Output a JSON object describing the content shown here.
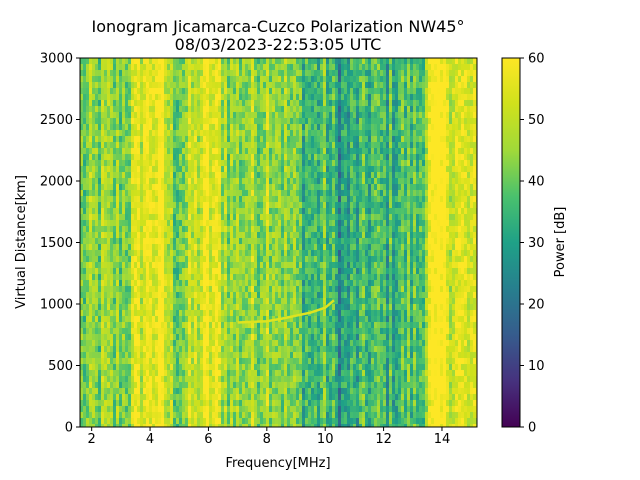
{
  "chart_data": {
    "type": "heatmap",
    "title": "Ionogram Jicamarca-Cuzco Polarization NW45°",
    "subtitle": "08/03/2023-22:53:05 UTC",
    "xlabel": "Frequency[MHz]",
    "ylabel": "Virtual Distance[km]",
    "xlim": [
      1.6,
      15.2
    ],
    "ylim": [
      0,
      3000
    ],
    "xticks": [
      2,
      4,
      6,
      8,
      10,
      12,
      14
    ],
    "yticks": [
      0,
      500,
      1000,
      1500,
      2000,
      2500,
      3000
    ],
    "colorbar": {
      "label": "Power [dB]",
      "colormap": "viridis",
      "range": [
        0,
        60
      ],
      "ticks": [
        0,
        10,
        20,
        30,
        40,
        50,
        60
      ]
    },
    "frequency_profile": {
      "frequency_mhz": [
        1.6,
        2.0,
        2.4,
        2.8,
        3.2,
        3.6,
        4.0,
        4.4,
        4.8,
        5.2,
        5.6,
        6.0,
        6.4,
        6.8,
        7.2,
        7.6,
        8.0,
        8.4,
        8.8,
        9.2,
        9.6,
        10.0,
        10.4,
        10.8,
        11.2,
        11.6,
        12.0,
        12.4,
        12.8,
        13.2,
        13.6,
        14.0,
        14.4,
        14.8,
        15.2
      ],
      "mean_power_db": [
        40,
        41,
        43,
        42,
        44,
        53,
        58,
        56,
        43,
        44,
        50,
        55,
        52,
        44,
        45,
        45,
        50,
        47,
        41,
        38,
        34,
        38,
        30,
        30,
        33,
        36,
        34,
        36,
        38,
        36,
        56,
        59,
        55,
        52,
        48
      ]
    },
    "echo_trace": {
      "frequency_mhz": [
        7.0,
        7.5,
        8.0,
        8.5,
        9.0,
        9.5,
        10.0,
        10.3
      ],
      "virtual_distance_km": [
        850,
        855,
        860,
        880,
        905,
        930,
        970,
        1030
      ],
      "power_db": 55
    }
  }
}
